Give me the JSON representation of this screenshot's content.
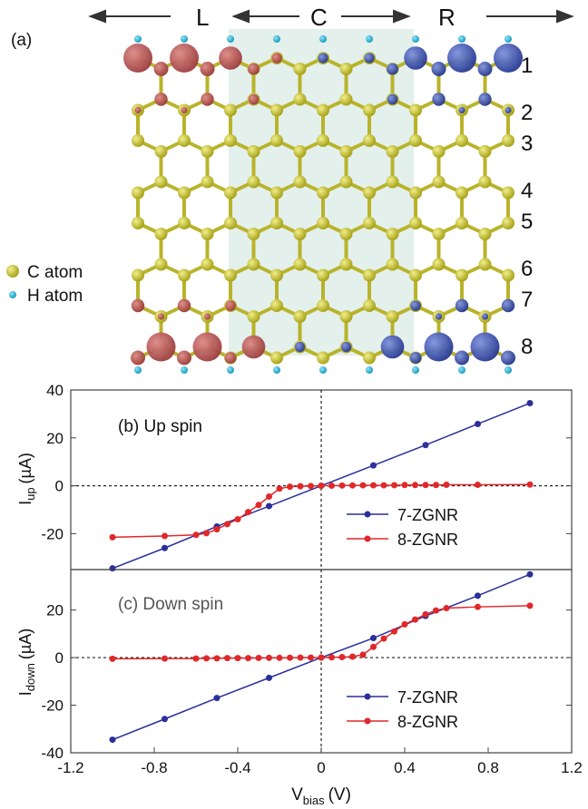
{
  "structure": {
    "panel_label": "(a)",
    "regions": [
      "L",
      "C",
      "R"
    ],
    "row_numbers": [
      "1",
      "2",
      "3",
      "4",
      "5",
      "6",
      "7",
      "8"
    ],
    "legend": [
      {
        "name": "C atom",
        "color": "#c9c422"
      },
      {
        "name": "H atom",
        "color": "#1fb0d8"
      }
    ],
    "spin_colors": {
      "up_density": "#b8504f",
      "down_density": "#3a55b5",
      "scattering_region": "#e3f0ec"
    }
  },
  "chart_data": [
    {
      "type": "line",
      "title": "(b) Up spin",
      "ylabel": "I",
      "ylabel_sub": "up",
      "ylabel_unit": "(µA)",
      "xlim": [
        -1.2,
        1.2
      ],
      "ylim": [
        -35,
        40
      ],
      "yticks": [
        -20,
        0,
        20,
        40
      ],
      "ytick_labels": [
        "-20",
        "0",
        "20",
        "40"
      ],
      "series": [
        {
          "name": "7-ZGNR",
          "color": "#2b2f9a",
          "x": [
            -1.0,
            -0.75,
            -0.5,
            -0.25,
            0.0,
            0.25,
            0.5,
            0.75,
            1.0
          ],
          "y": [
            -34.5,
            -26.0,
            -17.0,
            -8.5,
            0.0,
            8.5,
            17.0,
            25.8,
            34.5
          ]
        },
        {
          "name": "8-ZGNR",
          "color": "#e0282a",
          "x": [
            -1.0,
            -0.75,
            -0.6,
            -0.55,
            -0.5,
            -0.45,
            -0.4,
            -0.35,
            -0.3,
            -0.25,
            -0.2,
            -0.15,
            -0.1,
            -0.05,
            0.0,
            0.05,
            0.1,
            0.15,
            0.2,
            0.25,
            0.3,
            0.35,
            0.4,
            0.45,
            0.5,
            0.55,
            0.6,
            0.75,
            1.0
          ],
          "y": [
            -21.5,
            -21.0,
            -20.5,
            -19.8,
            -18.2,
            -16.0,
            -14.0,
            -11.0,
            -8.0,
            -4.5,
            -1.2,
            -0.4,
            -0.2,
            -0.1,
            0.0,
            0.05,
            0.1,
            0.15,
            0.2,
            0.2,
            0.2,
            0.25,
            0.3,
            0.3,
            0.3,
            0.3,
            0.4,
            0.4,
            0.5
          ]
        }
      ]
    },
    {
      "type": "line",
      "title": "(c) Down spin",
      "ylabel": "I",
      "ylabel_sub": "down",
      "ylabel_unit": "(µA)",
      "xlabel": "V",
      "xlabel_sub": "bias",
      "xlabel_unit": "(V)",
      "xlim": [
        -1.2,
        1.2
      ],
      "ylim": [
        -40,
        37
      ],
      "xticks": [
        -1.2,
        -0.8,
        -0.4,
        0,
        0.4,
        0.8,
        1.2
      ],
      "xtick_labels": [
        "-1.2",
        "-0.8",
        "-0.4",
        "0",
        "0.4",
        "0.8",
        "1.2"
      ],
      "yticks": [
        -40,
        -20,
        0,
        20
      ],
      "ytick_labels": [
        "-40",
        "-20",
        "0",
        "20"
      ],
      "series": [
        {
          "name": "7-ZGNR",
          "color": "#2b2f9a",
          "x": [
            -1.0,
            -0.75,
            -0.5,
            -0.25,
            0.0,
            0.25,
            0.5,
            0.75,
            1.0
          ],
          "y": [
            -34.5,
            -25.8,
            -17.0,
            -8.5,
            0.0,
            8.2,
            17.5,
            26.0,
            35.0
          ]
        },
        {
          "name": "8-ZGNR",
          "color": "#e0282a",
          "x": [
            -1.0,
            -0.75,
            -0.6,
            -0.55,
            -0.5,
            -0.45,
            -0.4,
            -0.35,
            -0.3,
            -0.25,
            -0.2,
            -0.15,
            -0.1,
            -0.05,
            0.0,
            0.05,
            0.1,
            0.15,
            0.2,
            0.25,
            0.3,
            0.35,
            0.4,
            0.45,
            0.5,
            0.55,
            0.6,
            0.75,
            1.0
          ],
          "y": [
            -0.5,
            -0.4,
            -0.4,
            -0.3,
            -0.3,
            -0.2,
            -0.2,
            -0.2,
            -0.15,
            -0.1,
            -0.1,
            -0.05,
            0.0,
            0.0,
            0.0,
            0.1,
            0.2,
            0.4,
            1.2,
            4.5,
            8.0,
            11.0,
            14.0,
            16.0,
            18.2,
            19.8,
            20.8,
            21.3,
            21.8
          ]
        }
      ]
    }
  ]
}
